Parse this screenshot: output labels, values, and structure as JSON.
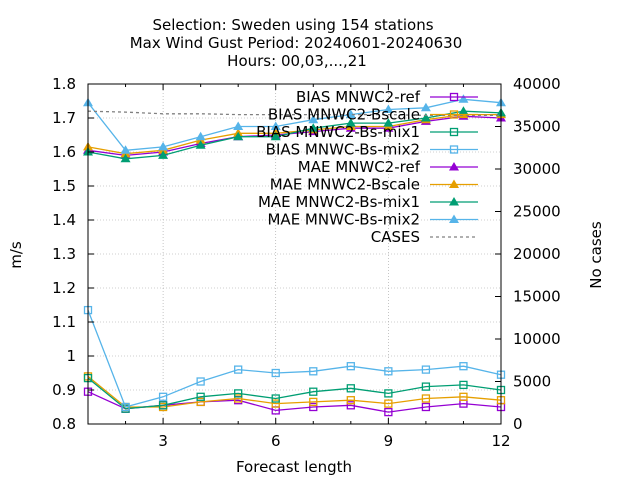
{
  "chart_data": {
    "type": "line",
    "title_lines": [
      "Selection: Sweden using   154 stations",
      "Max Wind Gust   Period: 20240601-20240630",
      "Hours: 00,03,...,21"
    ],
    "xlabel": "Forecast length",
    "ylabel": "m/s",
    "y2label": "No cases",
    "xlim": [
      1,
      12
    ],
    "ylim": [
      0.8,
      1.8
    ],
    "y2lim": [
      0,
      40000
    ],
    "xticks": [
      3,
      6,
      9,
      12
    ],
    "yticks": [
      0.8,
      0.9,
      1,
      1.1,
      1.2,
      1.3,
      1.4,
      1.5,
      1.6,
      1.7,
      1.8
    ],
    "y2ticks": [
      0,
      5000,
      10000,
      15000,
      20000,
      25000,
      30000,
      35000,
      40000
    ],
    "legend_position": "top-right",
    "x": [
      1,
      2,
      3,
      4,
      5,
      6,
      7,
      8,
      9,
      10,
      11,
      12
    ],
    "series": [
      {
        "name": "BIAS MNWC2-ref",
        "color": "#9400d3",
        "marker": "square-open",
        "axis": "y",
        "values": [
          0.895,
          0.845,
          0.855,
          0.865,
          0.87,
          0.84,
          0.85,
          0.855,
          0.835,
          0.85,
          0.86,
          0.85
        ]
      },
      {
        "name": "BIAS MNWC2-Bscale",
        "color": "#e69f00",
        "marker": "square-open",
        "axis": "y",
        "values": [
          0.94,
          0.85,
          0.85,
          0.865,
          0.875,
          0.86,
          0.865,
          0.87,
          0.86,
          0.875,
          0.88,
          0.87
        ]
      },
      {
        "name": "BIAS MNWC2-Bs-mix1",
        "color": "#009e73",
        "marker": "square-open",
        "axis": "y",
        "values": [
          0.935,
          0.845,
          0.855,
          0.88,
          0.89,
          0.875,
          0.895,
          0.905,
          0.89,
          0.91,
          0.915,
          0.9
        ]
      },
      {
        "name": "BIAS MNWC-Bs-mix2",
        "color": "#56b4e9",
        "marker": "square-open",
        "axis": "y",
        "values": [
          1.135,
          0.85,
          0.88,
          0.925,
          0.96,
          0.95,
          0.955,
          0.97,
          0.955,
          0.96,
          0.97,
          0.945
        ]
      },
      {
        "name": "MAE MNWC2-ref",
        "color": "#9400d3",
        "marker": "triangle",
        "axis": "y",
        "values": [
          1.605,
          1.59,
          1.6,
          1.625,
          1.645,
          1.65,
          1.66,
          1.67,
          1.67,
          1.69,
          1.705,
          1.7
        ]
      },
      {
        "name": "MAE MNWC2-Bscale",
        "color": "#e69f00",
        "marker": "triangle",
        "axis": "y",
        "values": [
          1.615,
          1.595,
          1.605,
          1.635,
          1.655,
          1.655,
          1.665,
          1.675,
          1.675,
          1.695,
          1.71,
          1.71
        ]
      },
      {
        "name": "MAE MNWC2-Bs-mix1",
        "color": "#009e73",
        "marker": "triangle",
        "axis": "y",
        "values": [
          1.6,
          1.58,
          1.59,
          1.62,
          1.645,
          1.645,
          1.67,
          1.685,
          1.685,
          1.7,
          1.72,
          1.715
        ]
      },
      {
        "name": "MAE MNWC-Bs-mix2",
        "color": "#56b4e9",
        "marker": "triangle",
        "axis": "y",
        "values": [
          1.745,
          1.605,
          1.615,
          1.645,
          1.675,
          1.675,
          1.695,
          1.71,
          1.725,
          1.73,
          1.755,
          1.745
        ]
      },
      {
        "name": "CASES",
        "color": "#808080",
        "marker": "none",
        "dashed": true,
        "axis": "y2",
        "values": [
          36800,
          36700,
          36500,
          36500,
          36400,
          36400,
          36400,
          36400,
          36400,
          36300,
          36300,
          36300
        ]
      }
    ]
  }
}
